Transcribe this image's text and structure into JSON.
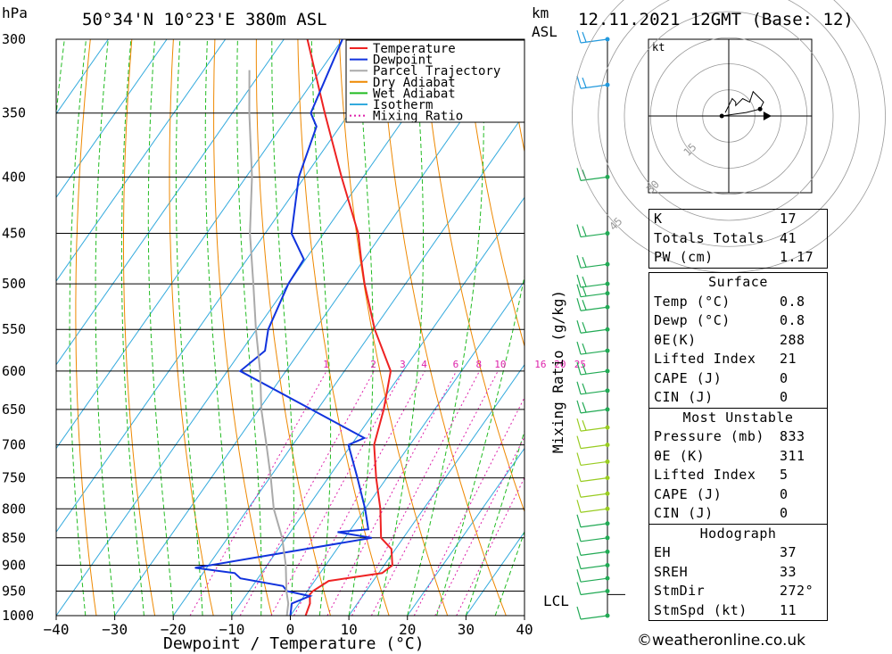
{
  "header": {
    "location": "50°34'N  10°23'E  380m  ASL",
    "datetime": "12.11.2021  12GMT  (Base: 12)",
    "pressure_unit": "hPa",
    "height_unit_line1": "km",
    "height_unit_line2": "ASL"
  },
  "chart_data": {
    "type": "skew-t",
    "xlabel": "Dewpoint / Temperature (°C)",
    "ylabel": "hPa",
    "mixing_ratio_label": "Mixing Ratio (g/kg)",
    "pressure_levels": [
      300,
      350,
      400,
      450,
      500,
      550,
      600,
      650,
      700,
      750,
      800,
      850,
      900,
      950,
      1000
    ],
    "x_ticks": [
      -40,
      -30,
      -20,
      -10,
      0,
      10,
      20,
      30,
      40
    ],
    "xlim": [
      -40,
      40
    ],
    "ylim": [
      1000,
      300
    ],
    "mixing_ratio_values": [
      1,
      2,
      3,
      4,
      6,
      8,
      10,
      16,
      20,
      25
    ],
    "legend": [
      {
        "name": "Temperature",
        "color": "#ee2222",
        "dash": ""
      },
      {
        "name": "Dewpoint",
        "color": "#1133dd",
        "dash": ""
      },
      {
        "name": "Parcel Trajectory",
        "color": "#aaaaaa",
        "dash": ""
      },
      {
        "name": "Dry Adiabat",
        "color": "#ee8800",
        "dash": ""
      },
      {
        "name": "Wet Adiabat",
        "color": "#22bb22",
        "dash": ""
      },
      {
        "name": "Isotherm",
        "color": "#33aadd",
        "dash": ""
      },
      {
        "name": "Mixing Ratio",
        "color": "#dd22aa",
        "dash": "2,3"
      }
    ],
    "series": [
      {
        "name": "Temperature",
        "color": "#ee2222",
        "points": [
          [
            1000,
            2.6
          ],
          [
            975,
            1.9
          ],
          [
            957,
            0.8
          ],
          [
            950,
            0.9
          ],
          [
            930,
            2.4
          ],
          [
            915,
            10.6
          ],
          [
            900,
            11.4
          ],
          [
            870,
            9.3
          ],
          [
            850,
            6.2
          ],
          [
            800,
            2.6
          ],
          [
            750,
            -1.8
          ],
          [
            700,
            -6.1
          ],
          [
            650,
            -8.7
          ],
          [
            600,
            -12.1
          ],
          [
            550,
            -19.8
          ],
          [
            500,
            -27.0
          ],
          [
            475,
            -30.5
          ],
          [
            450,
            -34.1
          ],
          [
            400,
            -43.7
          ],
          [
            350,
            -54.2
          ],
          [
            300,
            -66.0
          ]
        ]
      },
      {
        "name": "Dewpoint",
        "color": "#1133dd",
        "points": [
          [
            1000,
            0.0
          ],
          [
            975,
            -1.2
          ],
          [
            960,
            1.0
          ],
          [
            950,
            -3.5
          ],
          [
            940,
            -4.8
          ],
          [
            925,
            -13.0
          ],
          [
            915,
            -14.6
          ],
          [
            905,
            -22.0
          ],
          [
            850,
            4.6
          ],
          [
            840,
            -1.9
          ],
          [
            835,
            3.0
          ],
          [
            800,
            0.0
          ],
          [
            750,
            -5.0
          ],
          [
            700,
            -10.5
          ],
          [
            690,
            -8.6
          ],
          [
            600,
            -37.8
          ],
          [
            575,
            -36.0
          ],
          [
            550,
            -38.0
          ],
          [
            500,
            -40.0
          ],
          [
            475,
            -40.3
          ],
          [
            450,
            -45.5
          ],
          [
            400,
            -51.0
          ],
          [
            360,
            -54.0
          ],
          [
            350,
            -56.6
          ],
          [
            300,
            -60.0
          ]
        ]
      },
      {
        "name": "Parcel Trajectory",
        "color": "#aaaaaa",
        "points": [
          [
            1000,
            -0.6
          ],
          [
            975,
            -1.8
          ],
          [
            950,
            -3.6
          ],
          [
            900,
            -6.8
          ],
          [
            850,
            -10.7
          ],
          [
            800,
            -15.6
          ],
          [
            750,
            -19.8
          ],
          [
            700,
            -24.5
          ],
          [
            650,
            -29.6
          ],
          [
            600,
            -34.4
          ],
          [
            550,
            -40.1
          ],
          [
            500,
            -46.0
          ],
          [
            450,
            -52.6
          ],
          [
            400,
            -59.0
          ],
          [
            350,
            -67.1
          ],
          [
            320,
            -72.2
          ]
        ]
      }
    ],
    "wind_barbs": [
      300,
      330,
      400,
      450,
      480,
      500,
      510,
      525,
      550,
      575,
      600,
      625,
      650,
      675,
      700,
      725,
      750,
      775,
      800,
      825,
      850,
      875,
      900,
      925,
      950,
      1000
    ],
    "lcl_label": "LCL",
    "lcl_pressure": 957,
    "hodograph": {
      "unit": "kt",
      "ring_labels": [
        "15",
        "30",
        "45"
      ],
      "points": [
        [
          -2,
          0
        ],
        [
          5,
          1
        ],
        [
          9,
          2
        ],
        [
          10,
          4
        ],
        [
          7,
          7
        ],
        [
          6,
          4
        ],
        [
          4,
          5
        ],
        [
          2,
          3
        ],
        [
          2,
          4
        ],
        [
          1,
          5
        ],
        [
          0,
          3
        ],
        [
          -1,
          1
        ]
      ],
      "storm_motion": [
        11,
        0
      ]
    }
  },
  "indices": [
    {
      "label": "K",
      "value": "17"
    },
    {
      "label": "Totals Totals",
      "value": "41"
    },
    {
      "label": "PW (cm)",
      "value": "1.17"
    }
  ],
  "surface": {
    "title": "Surface",
    "rows": [
      {
        "label": "Temp (°C)",
        "value": "0.8"
      },
      {
        "label": "Dewp (°C)",
        "value": "0.8"
      },
      {
        "label": "θE(K)",
        "value": "288"
      },
      {
        "label": "Lifted Index",
        "value": "21"
      },
      {
        "label": "CAPE (J)",
        "value": "0"
      },
      {
        "label": "CIN (J)",
        "value": "0"
      }
    ]
  },
  "most_unstable": {
    "title": "Most Unstable",
    "rows": [
      {
        "label": "Pressure (mb)",
        "value": "833"
      },
      {
        "label": "θE (K)",
        "value": "311"
      },
      {
        "label": "Lifted Index",
        "value": "5"
      },
      {
        "label": "CAPE (J)",
        "value": "0"
      },
      {
        "label": "CIN (J)",
        "value": "0"
      }
    ]
  },
  "hodograph_table": {
    "title": "Hodograph",
    "rows": [
      {
        "label": "EH",
        "value": "37"
      },
      {
        "label": "SREH",
        "value": "33"
      },
      {
        "label": "StmDir",
        "value": "272°"
      },
      {
        "label": "StmSpd (kt)",
        "value": "11"
      }
    ]
  },
  "credit": "©weatheronline.co.uk"
}
